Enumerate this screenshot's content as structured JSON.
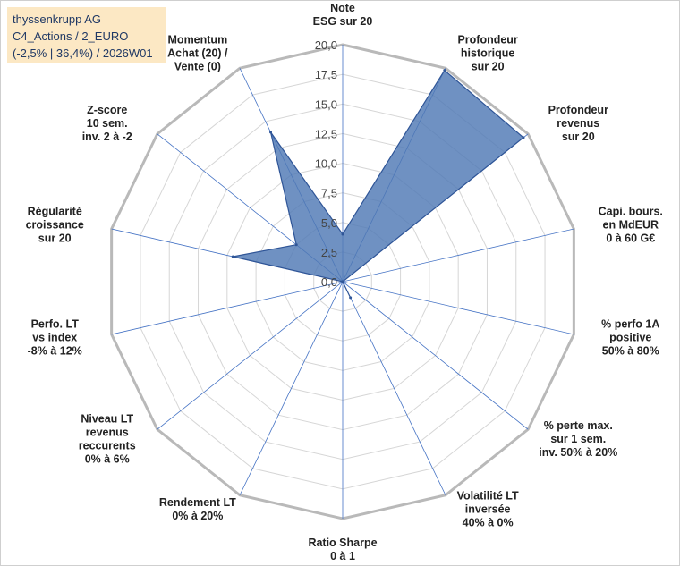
{
  "header": {
    "line1": "thyssenkrupp AG",
    "line2": "C4_Actions / 2_EURO",
    "line3": "(-2,5% | 36,4%) / 2026W01"
  },
  "chart_data": {
    "type": "radar",
    "rmin": 0,
    "rmax": 20,
    "ticks": [
      "0,0",
      "2,5",
      "5,0",
      "7,5",
      "10,0",
      "12,5",
      "15,0",
      "17,5",
      "20,0"
    ],
    "tick_values": [
      0,
      2.5,
      5,
      7.5,
      10,
      12.5,
      15,
      17.5,
      20
    ],
    "axes": [
      [
        "Note",
        "ESG sur 20"
      ],
      [
        "Profondeur",
        "historique",
        "sur 20"
      ],
      [
        "Profondeur",
        "revenus",
        "sur 20"
      ],
      [
        "Capi. bours.",
        "en MdEUR",
        "0 à 60 G€"
      ],
      [
        "% perfo 1A",
        "positive",
        "50% à 80%"
      ],
      [
        "% perte max.",
        "sur 1 sem.",
        "inv. 50% à 20%"
      ],
      [
        "Volatilité LT",
        "inversée",
        "40% à 0%"
      ],
      [
        "Ratio Sharpe",
        "0 à 1"
      ],
      [
        "Rendement LT",
        "0% à 20%"
      ],
      [
        "Niveau LT",
        "revenus",
        "reccurents",
        "0% à 6%"
      ],
      [
        "Perfo. LT",
        "vs index",
        "-8% à 12%"
      ],
      [
        "Régularité",
        "croissance",
        "sur 20"
      ],
      [
        "Z-score",
        "10 sem.",
        "inv. 2 à -2"
      ],
      [
        "Momentum",
        "Achat (20) /",
        "Vente (0)"
      ]
    ],
    "series": [
      {
        "name": "thyssenkrupp AG",
        "values": [
          4.0,
          19.8,
          19.5,
          0.0,
          0.0,
          0.0,
          1.5,
          0.0,
          0.0,
          0.0,
          0.0,
          9.5,
          5.0,
          14.0
        ]
      }
    ],
    "colors": {
      "fill": "#4f79b4",
      "stroke": "#2f5597",
      "grid": "#d6d6d6",
      "outer": "#b9b9b9",
      "spoke": "#4472c4"
    }
  }
}
